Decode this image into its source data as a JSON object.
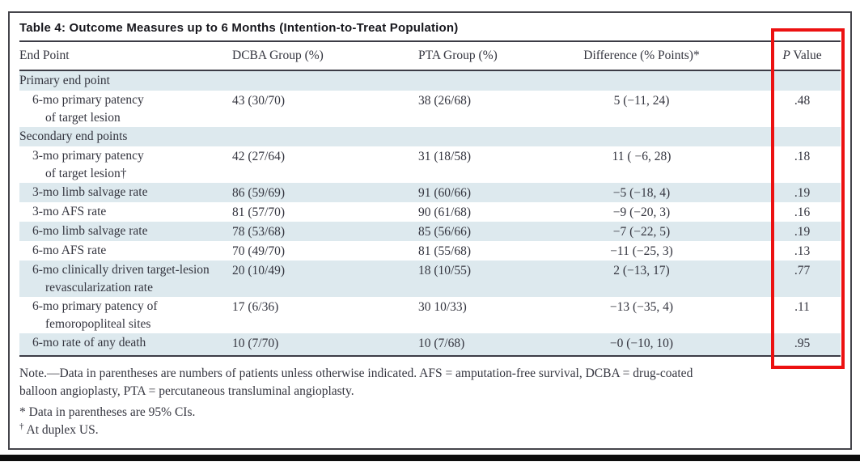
{
  "table": {
    "title": "Table 4: Outcome Measures up to 6 Months (Intention-to-Treat Population)",
    "columns": [
      "End Point",
      "DCBA Group (%)",
      "PTA Group (%)",
      "Difference (% Points)*",
      "P Value"
    ],
    "p_value_header": {
      "italic": "P",
      "rest": "Value"
    },
    "rows": [
      {
        "type": "section",
        "shaded": true,
        "label": "Primary end point"
      },
      {
        "type": "data",
        "shaded": false,
        "label": "6-mo primary patency",
        "label2": "of target lesion",
        "dcba": "43 (30/70)",
        "pta": "38 (26/68)",
        "diff": "5 (−11, 24)",
        "p": ".48"
      },
      {
        "type": "section",
        "shaded": true,
        "label": "Secondary end points"
      },
      {
        "type": "data",
        "shaded": false,
        "label": "3-mo primary patency",
        "label2": "of target lesion†",
        "dcba": "42 (27/64)",
        "pta": "31 (18/58)",
        "diff": "11 ( −6, 28)",
        "p": ".18"
      },
      {
        "type": "data",
        "shaded": true,
        "label": "3-mo limb salvage rate",
        "dcba": "86 (59/69)",
        "pta": "91 (60/66)",
        "diff": "−5 (−18, 4)",
        "p": ".19"
      },
      {
        "type": "data",
        "shaded": false,
        "label": "3-mo AFS rate",
        "dcba": "81 (57/70)",
        "pta": "90 (61/68)",
        "diff": "−9 (−20, 3)",
        "p": ".16"
      },
      {
        "type": "data",
        "shaded": true,
        "label": "6-mo limb salvage rate",
        "dcba": "78 (53/68)",
        "pta": "85 (56/66)",
        "diff": "−7 (−22, 5)",
        "p": ".19"
      },
      {
        "type": "data",
        "shaded": false,
        "label": "6-mo AFS rate",
        "dcba": "70 (49/70)",
        "pta": "81 (55/68)",
        "diff": "−11 (−25, 3)",
        "p": ".13"
      },
      {
        "type": "data",
        "shaded": true,
        "label": "6-mo clinically driven target-lesion",
        "label2": "revascularization rate",
        "dcba": "20 (10/49)",
        "pta": "18 (10/55)",
        "diff": "2 (−13, 17)",
        "p": ".77"
      },
      {
        "type": "data",
        "shaded": false,
        "label": "6-mo primary patency of",
        "label2": "femoropopliteal sites",
        "dcba": "17 (6/36)",
        "pta": "30 10/33)",
        "diff": "−13 (−35, 4)",
        "p": ".11"
      },
      {
        "type": "data",
        "shaded": true,
        "label": "6-mo rate of any death",
        "dcba": "10 (7/70)",
        "pta": "10 (7/68)",
        "diff": "−0 (−10, 10)",
        "p": ".95"
      }
    ],
    "footnotes": {
      "note_lines": [
        "Note.—Data in parentheses are numbers of patients unless otherwise indicated. AFS = amputation-free survival, DCBA = drug-coated",
        "balloon angioplasty, PTA = percutaneous transluminal angioplasty."
      ],
      "asterisk": "* Data in parentheses are 95% CIs.",
      "dagger_symbol": "†",
      "dagger_text": "At duplex US."
    },
    "highlight": {
      "column": "P Value",
      "color": "#ec1111"
    }
  },
  "colors": {
    "row_shade": "#dde9ee",
    "text": "#34353f",
    "rule": "#3c3c46",
    "box_border": "#45454b",
    "highlight_red": "#ec1111",
    "bottom_bar": "#0d0d0d"
  }
}
